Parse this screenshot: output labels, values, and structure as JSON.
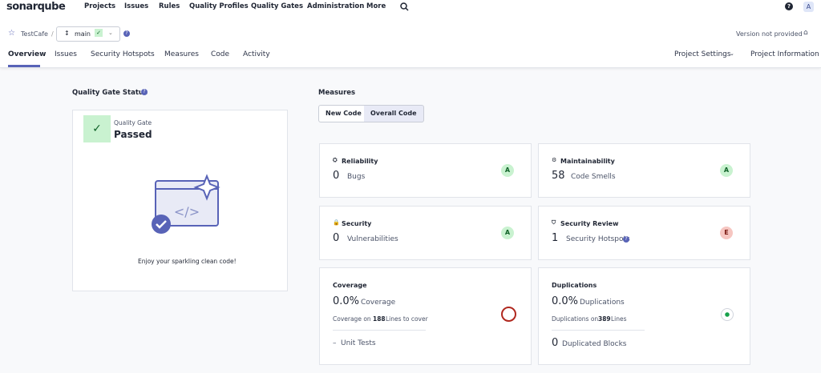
{
  "nav": {
    "logo": "sonarqube",
    "items": [
      "Projects",
      "Issues",
      "Rules",
      "Quality Profiles",
      "Quality Gates",
      "Administration",
      "More"
    ],
    "help": "?",
    "avatar": "A"
  },
  "project": {
    "name": "TestCafe",
    "branch": "main",
    "version": "Version not provided"
  },
  "tabs": {
    "items": [
      "Overview",
      "Issues",
      "Security Hotspots",
      "Measures",
      "Code",
      "Activity"
    ],
    "settings": "Project Settings",
    "information": "Project Information"
  },
  "quality_gate": {
    "heading": "Quality Gate Status",
    "label": "Quality Gate",
    "status": "Passed",
    "message": "Enjoy your sparkling clean code!"
  },
  "measures": {
    "heading": "Measures",
    "toggle": [
      "New Code",
      "Overall Code"
    ],
    "reliability": {
      "title": "Reliability",
      "value": 0,
      "unit": "Bugs",
      "rating": "A"
    },
    "maintainability": {
      "title": "Maintainability",
      "value": 58,
      "unit": "Code Smells",
      "rating": "A"
    },
    "security": {
      "title": "Security",
      "value": 0,
      "unit": "Vulnerabilities",
      "rating": "A"
    },
    "security_review": {
      "title": "Security Review",
      "value": 1,
      "unit": "Security Hotspots",
      "rating": "E"
    },
    "coverage": {
      "title": "Coverage",
      "value": "0.0%",
      "unit": "Coverage",
      "detail_prefix": "Coverage on",
      "lines": 188,
      "detail_suffix": "Lines to cover",
      "tests_value": "–",
      "tests_unit": "Unit Tests"
    },
    "duplications": {
      "title": "Duplications",
      "value": "0.0%",
      "unit": "Duplications",
      "detail_prefix": "Duplications on",
      "lines": 389,
      "detail_suffix": "Lines",
      "blocks_value": 0,
      "blocks_unit": "Duplicated Blocks"
    }
  }
}
